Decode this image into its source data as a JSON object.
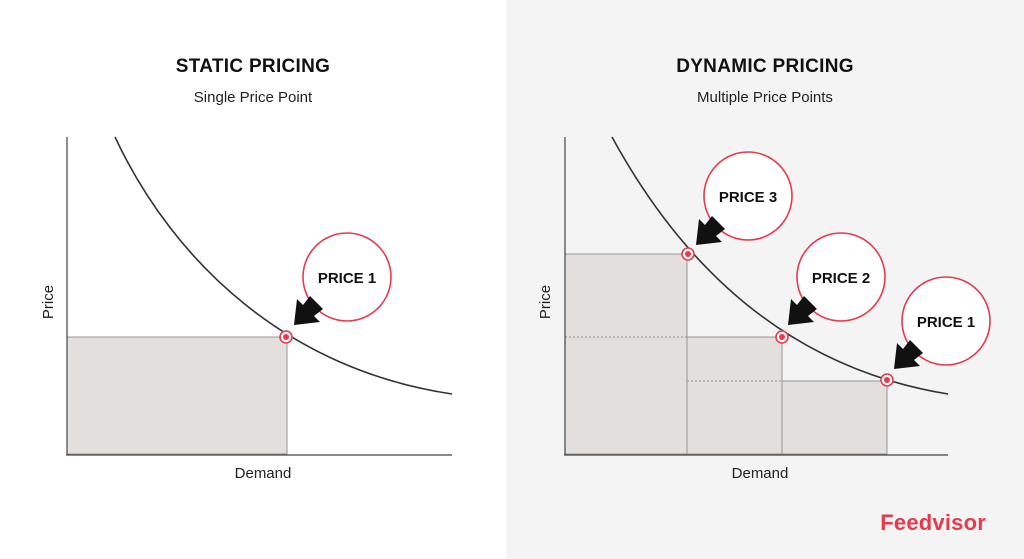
{
  "static": {
    "title": "STATIC PRICING",
    "subtitle": "Single Price Point",
    "y_label": "Price",
    "x_label": "Demand",
    "callouts": [
      {
        "label": "PRICE 1"
      }
    ]
  },
  "dynamic": {
    "title": "DYNAMIC PRICING",
    "subtitle": "Multiple Price Points",
    "y_label": "Price",
    "x_label": "Demand",
    "callouts": [
      {
        "label": "PRICE 3"
      },
      {
        "label": "PRICE 2"
      },
      {
        "label": "PRICE 1"
      }
    ]
  },
  "brand": "Feedvisor",
  "colors": {
    "accent": "#e8394d",
    "area_fill": "#e3dfdc",
    "curve": "#333333",
    "arrow": "#111111"
  }
}
